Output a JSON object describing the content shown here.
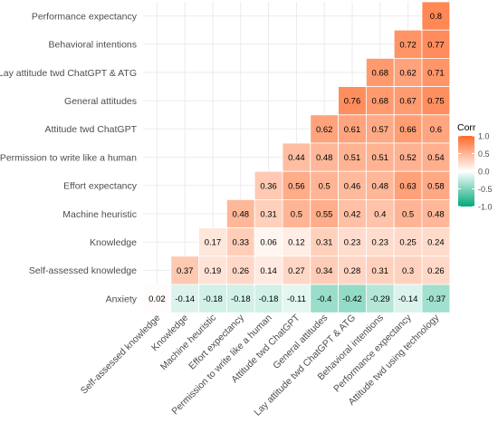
{
  "chart_data": {
    "type": "heatmap",
    "title": "",
    "xlabel": "",
    "ylabel": "",
    "x_categories": [
      "Self-assessed knowledge",
      "Knowledge",
      "Machine heuristic",
      "Effort expectancy",
      "Permission to write like a human",
      "Attitude twd ChatGPT",
      "General attitudes",
      "Lay attitude twd ChatGPT & ATG",
      "Behavioral intentions",
      "Performance expectancy",
      "Attitude twd using technology"
    ],
    "y_categories": [
      "Performance expectancy",
      "Behavioral intentions",
      "Lay attitude twd ChatGPT & ATG",
      "General attitudes",
      "Attitude twd ChatGPT",
      "Permission to write like a human",
      "Effort expectancy",
      "Machine heuristic",
      "Knowledge",
      "Self-assessed knowledge",
      "Anxiety"
    ],
    "values": [
      [
        null,
        null,
        null,
        null,
        null,
        null,
        null,
        null,
        null,
        null,
        0.8
      ],
      [
        null,
        null,
        null,
        null,
        null,
        null,
        null,
        null,
        null,
        0.72,
        0.77
      ],
      [
        null,
        null,
        null,
        null,
        null,
        null,
        null,
        null,
        0.68,
        0.62,
        0.71
      ],
      [
        null,
        null,
        null,
        null,
        null,
        null,
        null,
        0.76,
        0.68,
        0.67,
        0.75
      ],
      [
        null,
        null,
        null,
        null,
        null,
        null,
        0.62,
        0.61,
        0.57,
        0.66,
        0.6
      ],
      [
        null,
        null,
        null,
        null,
        null,
        0.44,
        0.48,
        0.51,
        0.51,
        0.52,
        0.54
      ],
      [
        null,
        null,
        null,
        null,
        0.36,
        0.56,
        0.5,
        0.46,
        0.48,
        0.63,
        0.58
      ],
      [
        null,
        null,
        null,
        0.48,
        0.31,
        0.5,
        0.55,
        0.42,
        0.4,
        0.5,
        0.48
      ],
      [
        null,
        null,
        0.17,
        0.33,
        0.06,
        0.12,
        0.31,
        0.23,
        0.23,
        0.25,
        0.24
      ],
      [
        null,
        0.37,
        0.19,
        0.26,
        0.14,
        0.27,
        0.34,
        0.28,
        0.31,
        0.3,
        0.26
      ],
      [
        0.02,
        -0.14,
        -0.18,
        -0.18,
        -0.18,
        -0.11,
        -0.4,
        -0.42,
        -0.29,
        -0.14,
        -0.37
      ]
    ],
    "value_range": [
      -1.0,
      1.0
    ],
    "grid": true,
    "colorbar": {
      "title": "Corr",
      "ticks": [
        "1.0",
        "0.5",
        "0.0",
        "-0.5",
        "-1.0"
      ],
      "tick_values": [
        1.0,
        0.5,
        0.0,
        -0.5,
        -1.0
      ],
      "placement": "right"
    },
    "colors": {
      "low": "#00A97A",
      "mid": "#FFFFFF",
      "high": "#FF6A2B",
      "grid": "#EBEBEB",
      "cell_border": "#FFFFFF",
      "label_text": "#4D4D4D"
    }
  }
}
